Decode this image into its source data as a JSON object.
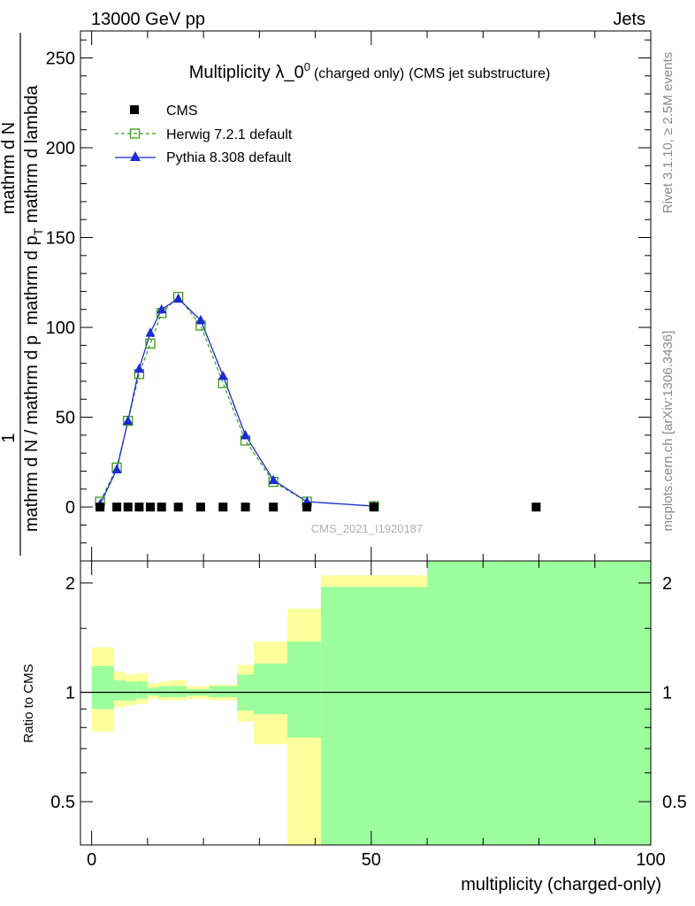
{
  "header": {
    "left": "13000 GeV pp",
    "right": "Jets"
  },
  "side_labels": {
    "top": "Rivet 3.1.10, ≥ 2.5M events",
    "bottom": "mcplots.cern.ch [arXiv:1306.3436]"
  },
  "watermark": "CMS_2021_I1920187",
  "colors": {
    "data": "#000000",
    "herwig": "#3a9a1a",
    "pythia": "#1a2ad8",
    "band_inner": "#9dfe9d",
    "band_outer": "#fefe9d"
  },
  "chart_data": [
    {
      "type": "scatter",
      "title": {
        "main": "Multiplicity λ_0",
        "sup": "0",
        "paren1": "(charged only)",
        "paren2": "(CMS jet substructure)"
      },
      "ylabel": {
        "line1": "1",
        "line2": "mathrm d N / mathrm d p",
        "line3": "mathrm d N",
        "line4": "mathrm d p",
        "line4_sub": "T",
        "line4_suffix": " mathrm d lambda"
      },
      "xlim": [
        -2,
        100
      ],
      "ylim": [
        -30,
        265
      ],
      "yticks": [
        0,
        50,
        100,
        150,
        200,
        250
      ],
      "ytick_labels": [
        "0",
        "50",
        "100",
        "150",
        "200",
        "250"
      ],
      "legend": [
        "CMS",
        "Herwig 7.2.1 default",
        "Pythia 8.308 default"
      ],
      "series": [
        {
          "name": "CMS",
          "x": [
            1.5,
            4.5,
            6.5,
            8.5,
            10.5,
            12.5,
            15.5,
            19.5,
            23.5,
            27.5,
            32.5,
            38.5,
            50.5,
            79.5
          ],
          "y": [
            0,
            0,
            0,
            0,
            0,
            0,
            0,
            0,
            0,
            0,
            0,
            0,
            0,
            0
          ]
        },
        {
          "name": "Herwig 7.2.1 default",
          "x": [
            1.5,
            4.5,
            6.5,
            8.5,
            10.5,
            12.5,
            15.5,
            19.5,
            23.5,
            27.5,
            32.5,
            38.5,
            50.5
          ],
          "y": [
            3,
            22,
            48,
            74,
            91,
            108,
            117,
            101,
            69,
            37,
            14,
            3,
            0.5
          ]
        },
        {
          "name": "Pythia 8.308 default",
          "x": [
            1.5,
            4.5,
            6.5,
            8.5,
            10.5,
            12.5,
            15.5,
            19.5,
            23.5,
            27.5,
            32.5,
            38.5,
            50.5
          ],
          "y": [
            1.5,
            21,
            48,
            77,
            97,
            110,
            116,
            104,
            73,
            40,
            15,
            3,
            0.5
          ]
        }
      ]
    },
    {
      "type": "area",
      "ylabel": "Ratio to CMS",
      "xlabel": "multiplicity (charged-only)",
      "xlim": [
        -2,
        100
      ],
      "ylim": [
        0.38,
        2.3
      ],
      "xticks": [
        0,
        50,
        100
      ],
      "xtick_labels": [
        "0",
        "50",
        "100"
      ],
      "yticks": [
        0.5,
        1,
        2
      ],
      "ytick_labels": [
        "0.5",
        "1",
        "2"
      ],
      "reference_line": 1,
      "bands": [
        {
          "x0": 0,
          "x1": 4,
          "inner": [
            0.9,
            1.18
          ],
          "outer": [
            0.78,
            1.33
          ]
        },
        {
          "x0": 4,
          "x1": 6,
          "inner": [
            0.95,
            1.08
          ],
          "outer": [
            0.91,
            1.14
          ]
        },
        {
          "x0": 6,
          "x1": 8,
          "inner": [
            0.95,
            1.07
          ],
          "outer": [
            0.92,
            1.12
          ]
        },
        {
          "x0": 8,
          "x1": 10,
          "inner": [
            0.96,
            1.07
          ],
          "outer": [
            0.93,
            1.13
          ]
        },
        {
          "x0": 10,
          "x1": 12,
          "inner": [
            0.98,
            1.03
          ],
          "outer": [
            0.96,
            1.06
          ]
        },
        {
          "x0": 12,
          "x1": 14,
          "inner": [
            0.97,
            1.04
          ],
          "outer": [
            0.95,
            1.07
          ]
        },
        {
          "x0": 14,
          "x1": 17,
          "inner": [
            0.97,
            1.04
          ],
          "outer": [
            0.95,
            1.08
          ]
        },
        {
          "x0": 17,
          "x1": 21,
          "inner": [
            0.98,
            1.02
          ],
          "outer": [
            0.96,
            1.04
          ]
        },
        {
          "x0": 21,
          "x1": 26,
          "inner": [
            0.97,
            1.04
          ],
          "outer": [
            0.95,
            1.05
          ]
        },
        {
          "x0": 26,
          "x1": 29,
          "inner": [
            0.89,
            1.12
          ],
          "outer": [
            0.83,
            1.19
          ]
        },
        {
          "x0": 29,
          "x1": 35,
          "inner": [
            0.87,
            1.2
          ],
          "outer": [
            0.72,
            1.38
          ]
        },
        {
          "x0": 35,
          "x1": 41,
          "inner": [
            0.75,
            1.38
          ],
          "outer": [
            0.38,
            1.7
          ]
        },
        {
          "x0": 41,
          "x1": 60,
          "inner": [
            0.38,
            1.95
          ],
          "outer": [
            0.38,
            2.1
          ]
        },
        {
          "x0": 60,
          "x1": 100,
          "inner": [
            0.38,
            2.3
          ],
          "outer": [
            0.38,
            2.3
          ]
        }
      ]
    }
  ]
}
